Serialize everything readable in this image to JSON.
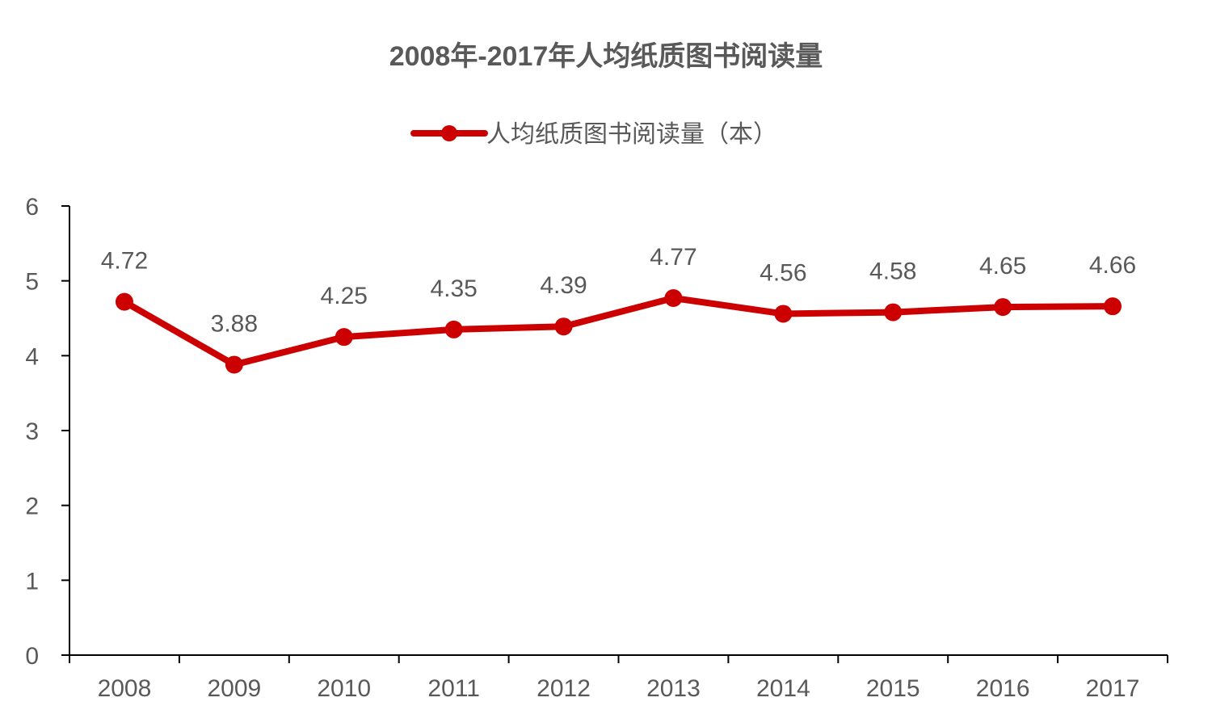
{
  "chart_data": {
    "type": "line",
    "title": "2008年-2017年人均纸质图书阅读量",
    "categories": [
      "2008",
      "2009",
      "2010",
      "2011",
      "2012",
      "2013",
      "2014",
      "2015",
      "2016",
      "2017"
    ],
    "series": [
      {
        "name": "人均纸质图书阅读量（本）",
        "values": [
          4.72,
          3.88,
          4.25,
          4.35,
          4.39,
          4.77,
          4.56,
          4.58,
          4.65,
          4.66
        ],
        "color": "#cc0000"
      }
    ],
    "data_labels": [
      "4.72",
      "3.88",
      "4.25",
      "4.35",
      "4.39",
      "4.77",
      "4.56",
      "4.58",
      "4.65",
      "4.66"
    ],
    "xlabel": "",
    "ylabel": "",
    "ylim": [
      0,
      6
    ],
    "yticks": [
      "0",
      "1",
      "2",
      "3",
      "4",
      "5",
      "6"
    ],
    "grid": false,
    "legend_position": "top-center",
    "colors": {
      "series": "#cc0000",
      "axis": "#000000",
      "text": "#595959"
    }
  }
}
